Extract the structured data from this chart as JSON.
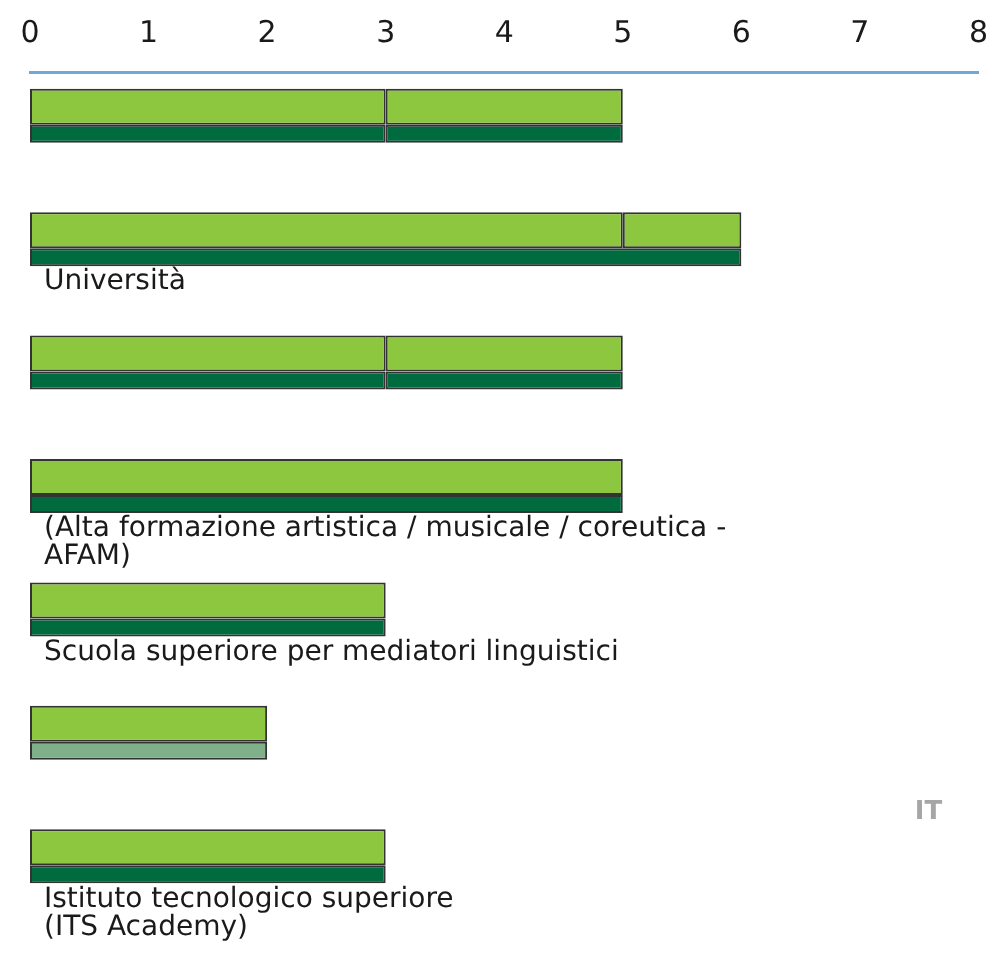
{
  "chart_data": {
    "type": "bar",
    "orientation": "horizontal",
    "categories": [
      null,
      "Università",
      null,
      "(Alta formazione artistica / musicale / coreutica - AFAM)",
      "Scuola superiore per mediatori linguistici",
      null,
      "Istituto tecnologico superiore (ITS Academy)"
    ],
    "series": [
      {
        "color": "#8dc63f",
        "base": [
          0,
          0,
          0,
          0,
          0,
          0,
          0
        ],
        "values": [
          3,
          5,
          3,
          5,
          3,
          2,
          3
        ]
      },
      {
        "color": "#8dc63f",
        "base": [
          3,
          5,
          3,
          null,
          null,
          null,
          null
        ],
        "values": [
          2,
          1,
          2,
          null,
          null,
          null,
          null
        ]
      },
      {
        "color": "#006b3f",
        "base": [
          0,
          null,
          0,
          null,
          0,
          null,
          0
        ],
        "values": [
          3,
          null,
          3,
          null,
          3,
          null,
          3
        ]
      },
      {
        "color": "#006b3f",
        "base": [
          3,
          0,
          3,
          0,
          null,
          null,
          null
        ],
        "values": [
          2,
          6,
          2,
          5,
          null,
          null,
          null
        ]
      },
      {
        "color": "#7fb08a",
        "base": [
          null,
          null,
          null,
          null,
          null,
          0,
          null
        ],
        "values": [
          null,
          null,
          null,
          null,
          null,
          2,
          null
        ]
      }
    ],
    "xlim": [
      0,
      8
    ],
    "xticks": [
      0,
      1,
      2,
      3,
      4,
      5,
      6,
      7,
      8
    ],
    "legend": false,
    "annotations": [
      "IT"
    ]
  }
}
